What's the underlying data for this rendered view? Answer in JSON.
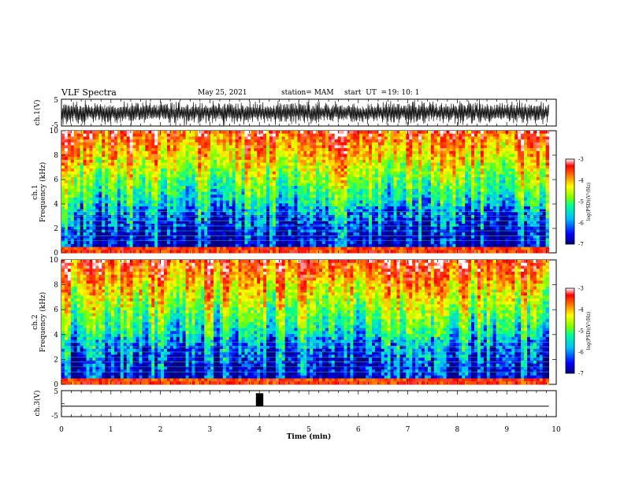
{
  "header": {
    "title": "VLF Spectra",
    "date": "May 25, 2021",
    "station": "station= MAM",
    "start_label": "start  UT  =",
    "start_time": "19: 10: 1"
  },
  "chart_data": [
    {
      "type": "line",
      "panel": "ch1-waveform",
      "ylabel": "ch.1(V)",
      "ylim": [
        -5,
        5
      ],
      "y_ticks": [
        "5",
        "-5"
      ],
      "xlim": [
        0,
        10
      ]
    },
    {
      "type": "heatmap",
      "panel": "ch1-spectrogram",
      "ylabel": "ch.1\nFrequency (kHz)",
      "ylabel_lines": [
        "ch.1",
        "Frequency  (kHz)"
      ],
      "ylim": [
        0,
        10
      ],
      "y_ticks": [
        "0",
        "2",
        "4",
        "6",
        "8",
        "10"
      ],
      "xlim": [
        0,
        9.85
      ],
      "colorbar": {
        "label": "log(PSD)(V²/Hz)",
        "range": [
          -7,
          -3
        ],
        "ticks": [
          "-3",
          "-4",
          "-5",
          "-6",
          "-7"
        ]
      }
    },
    {
      "type": "heatmap",
      "panel": "ch2-spectrogram",
      "ylabel_lines": [
        "ch.2",
        "Frequency  (kHz)"
      ],
      "ylim": [
        0,
        10
      ],
      "y_ticks": [
        "0",
        "2",
        "4",
        "6",
        "8",
        "10"
      ],
      "xlim": [
        0,
        9.85
      ],
      "colorbar": {
        "label": "log(PSD)(V²/Hz)",
        "range": [
          -7,
          -3
        ],
        "ticks": [
          "-3",
          "-4",
          "-5",
          "-6",
          "-7"
        ]
      }
    },
    {
      "type": "line",
      "panel": "ch3-waveform",
      "ylabel": "ch.3(V)",
      "ylim": [
        -5,
        5
      ],
      "y_ticks": [
        "5",
        "0",
        "-5"
      ],
      "xlim": [
        0,
        10
      ],
      "baseline_v": -1,
      "pulse": {
        "x_start": 3.93,
        "x_end": 4.08,
        "level_v": 4
      }
    }
  ],
  "x_axis": {
    "label": "Time  (min)",
    "xlim": [
      0,
      10
    ],
    "ticks": [
      "0",
      "1",
      "2",
      "3",
      "4",
      "5",
      "6",
      "7",
      "8",
      "9",
      "10"
    ]
  },
  "colors": {
    "colormap": [
      "#000080",
      "#0000ff",
      "#00bfff",
      "#00ff99",
      "#7fff00",
      "#ffff00",
      "#ff8000",
      "#ff0000",
      "#ffffff"
    ]
  }
}
